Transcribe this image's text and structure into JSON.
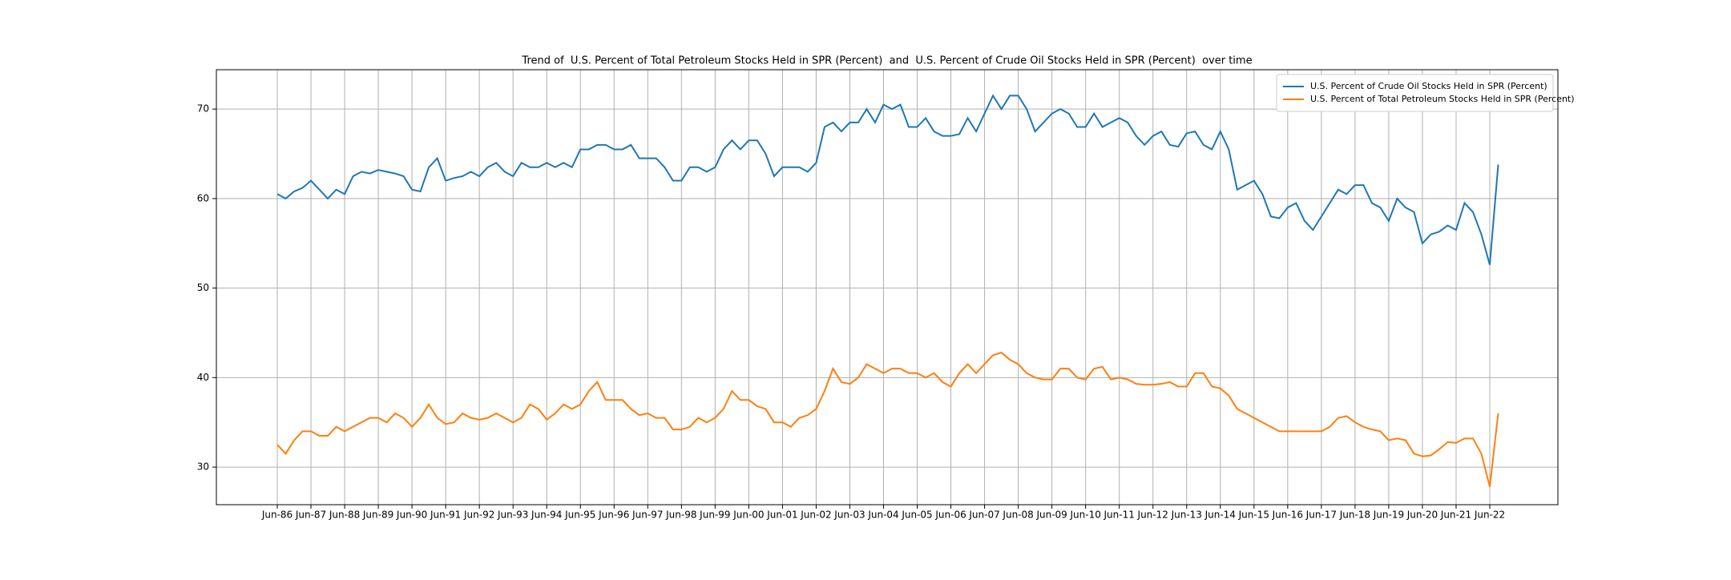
{
  "chart_data": {
    "type": "line",
    "title": "Trend of  U.S. Percent of Total Petroleum Stocks Held in SPR (Percent)  and  U.S. Percent of Crude Oil Stocks Held in SPR (Percent)  over time",
    "x": [
      "Jun-86",
      null,
      null,
      null,
      "Jun-87",
      null,
      null,
      null,
      "Jun-88",
      null,
      null,
      null,
      "Jun-89",
      null,
      null,
      null,
      "Jun-90",
      null,
      null,
      null,
      "Jun-91",
      null,
      null,
      null,
      "Jun-92",
      null,
      null,
      null,
      "Jun-93",
      null,
      null,
      null,
      "Jun-94",
      null,
      null,
      null,
      "Jun-95",
      null,
      null,
      null,
      "Jun-96",
      null,
      null,
      null,
      "Jun-97",
      null,
      null,
      null,
      "Jun-98",
      null,
      null,
      null,
      "Jun-99",
      null,
      null,
      null,
      "Jun-00",
      null,
      null,
      null,
      "Jun-01",
      null,
      null,
      null,
      "Jun-02",
      null,
      null,
      null,
      "Jun-03",
      null,
      null,
      null,
      "Jun-04",
      null,
      null,
      null,
      "Jun-05",
      null,
      null,
      null,
      "Jun-06",
      null,
      null,
      null,
      "Jun-07",
      null,
      null,
      null,
      "Jun-08",
      null,
      null,
      null,
      "Jun-09",
      null,
      null,
      null,
      "Jun-10",
      null,
      null,
      null,
      "Jun-11",
      null,
      null,
      null,
      "Jun-12",
      null,
      null,
      null,
      "Jun-13",
      null,
      null,
      null,
      "Jun-14",
      null,
      null,
      null,
      "Jun-15",
      null,
      null,
      null,
      "Jun-16",
      null,
      null,
      null,
      "Jun-17",
      null,
      null,
      null,
      "Jun-18",
      null,
      null,
      null,
      "Jun-19",
      null,
      null,
      null,
      "Jun-20",
      null,
      null,
      null,
      "Jun-21",
      null,
      null,
      null,
      "Jun-22",
      null
    ],
    "series": [
      {
        "name": "U.S. Percent of Crude Oil Stocks Held in SPR (Percent)",
        "color": "#1f77b4",
        "values": [
          60.5,
          60,
          60.8,
          61.2,
          62,
          61,
          60,
          61,
          60.5,
          62.5,
          63,
          62.8,
          63.2,
          63,
          62.8,
          62.5,
          61,
          60.8,
          63.5,
          64.5,
          62,
          62.3,
          62.5,
          63,
          62.5,
          63.5,
          64,
          63,
          62.5,
          64,
          63.5,
          63.5,
          64,
          63.5,
          64,
          63.5,
          65.5,
          65.5,
          66,
          66,
          65.5,
          65.5,
          66,
          64.5,
          64.5,
          64.5,
          63.5,
          62,
          62,
          63.5,
          63.5,
          63,
          63.5,
          65.5,
          66.5,
          65.5,
          66.5,
          66.5,
          65,
          62.5,
          63.5,
          63.5,
          63.5,
          63,
          64,
          68,
          68.5,
          67.5,
          68.5,
          68.5,
          70,
          68.5,
          70.5,
          70,
          70.5,
          68,
          68,
          69,
          67.5,
          67,
          67,
          67.2,
          69,
          67.5,
          69.5,
          71.5,
          70,
          71.5,
          71.5,
          70,
          67.5,
          68.5,
          69.5,
          70,
          69.5,
          68,
          68,
          69.5,
          68,
          68.5,
          69,
          68.5,
          67,
          66,
          67,
          67.5,
          66,
          65.8,
          67.3,
          67.5,
          66,
          65.5,
          67.5,
          65.5,
          61,
          61.5,
          62,
          60.5,
          58,
          57.8,
          59,
          59.5,
          57.5,
          56.5,
          58,
          59.5,
          61,
          60.5,
          61.5,
          61.5,
          59.5,
          59,
          57.5,
          60,
          59,
          58.5,
          55,
          56,
          56.3,
          57,
          56.5,
          59.5,
          58.5,
          56,
          52.6,
          63.8
        ]
      },
      {
        "name": "U.S. Percent of Total Petroleum Stocks Held in SPR (Percent)",
        "color": "#ff7f0e",
        "values": [
          32.5,
          31.5,
          33,
          34,
          34,
          33.5,
          33.5,
          34.5,
          34,
          34.5,
          35,
          35.5,
          35.5,
          35,
          36,
          35.5,
          34.5,
          35.5,
          37,
          35.5,
          34.8,
          35,
          36,
          35.5,
          35.3,
          35.5,
          36,
          35.5,
          35,
          35.5,
          37,
          36.5,
          35.3,
          36,
          37,
          36.5,
          37,
          38.5,
          39.5,
          37.5,
          37.5,
          37.5,
          36.5,
          35.8,
          36,
          35.5,
          35.5,
          34.2,
          34.2,
          34.5,
          35.5,
          35,
          35.5,
          36.5,
          38.5,
          37.5,
          37.5,
          36.8,
          36.5,
          35,
          35,
          34.5,
          35.5,
          35.8,
          36.5,
          38.5,
          41,
          39.5,
          39.3,
          40,
          41.5,
          41,
          40.5,
          41,
          41,
          40.5,
          40.5,
          40,
          40.5,
          39.5,
          39,
          40.5,
          41.5,
          40.5,
          41.5,
          42.5,
          42.8,
          42,
          41.5,
          40.5,
          40,
          39.8,
          39.8,
          41,
          41,
          40,
          39.8,
          41,
          41.2,
          39.8,
          40,
          39.8,
          39.3,
          39.2,
          39.2,
          39.3,
          39.5,
          39,
          39,
          40.5,
          40.5,
          39,
          38.8,
          38,
          36.5,
          36,
          35.5,
          35,
          34.5,
          34,
          34,
          34,
          34,
          34,
          34,
          34.5,
          35.5,
          35.7,
          35,
          34.5,
          34.2,
          34,
          33,
          33.2,
          33,
          31.5,
          31.2,
          31.3,
          32,
          32.8,
          32.7,
          33.2,
          33.2,
          31.5,
          27.8,
          36.0
        ]
      }
    ],
    "ylim": [
      25.8,
      74.4
    ],
    "yticks": [
      30,
      40,
      50,
      60,
      70
    ],
    "grid": true,
    "legend": "upper right"
  }
}
